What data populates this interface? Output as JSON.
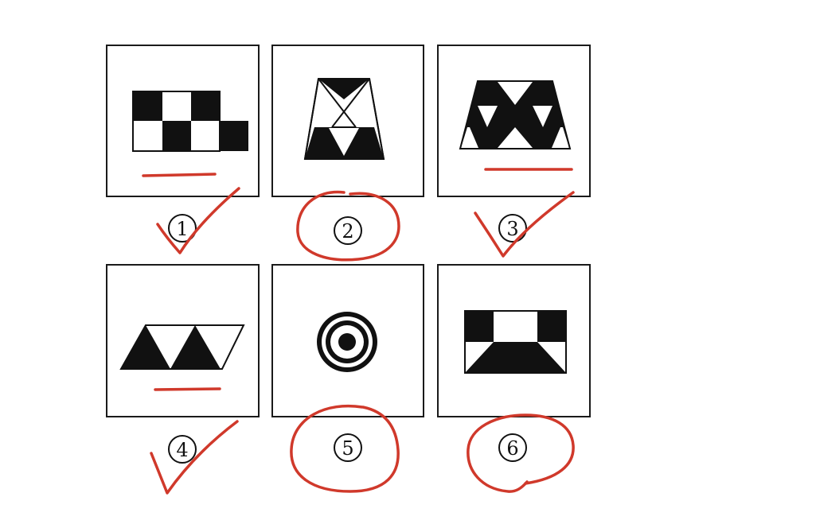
{
  "colors": {
    "ink": "#111111",
    "annotation": "#d0392b",
    "border": "#1a1a1a"
  },
  "figures": [
    {
      "label": "①",
      "marks": [
        "underline",
        "checkmark"
      ]
    },
    {
      "label": "②",
      "marks": [
        "circle"
      ]
    },
    {
      "label": "③",
      "marks": [
        "underline",
        "checkmark"
      ]
    },
    {
      "label": "④",
      "marks": [
        "underline",
        "checkmark"
      ]
    },
    {
      "label": "⑤",
      "marks": [
        "circle"
      ]
    },
    {
      "label": "⑥",
      "marks": [
        "circle"
      ]
    }
  ]
}
